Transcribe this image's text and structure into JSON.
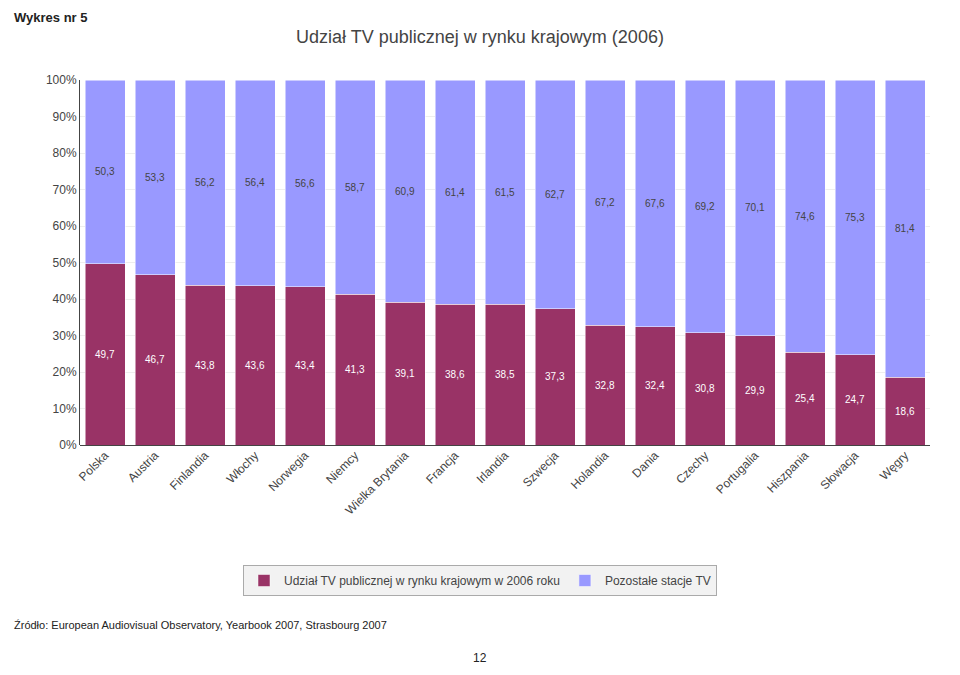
{
  "chart_data": {
    "type": "bar",
    "title": "Udział TV publicznej w rynku krajowym (2006)",
    "annotations": [
      "Wykres nr 5",
      "Źródło: European Audiovisual Observatory, Yearbook 2007, Strasbourg 2007",
      "12"
    ],
    "categories": [
      "Polska",
      "Austria",
      "Finlandia",
      "Włochy",
      "Norwegia",
      "Niemcy",
      "Wielka Brytania",
      "Francja",
      "Irlandia",
      "Szwecja",
      "Holandia",
      "Dania",
      "Czechy",
      "Portugalia",
      "Hiszpania",
      "Słowacja",
      "Węgry"
    ],
    "series": [
      {
        "name": "Udział TV publicznej w rynku krajowym w 2006 roku",
        "color": "#993366",
        "values": [
          49.7,
          46.7,
          43.8,
          43.6,
          43.4,
          41.3,
          39.1,
          38.6,
          38.5,
          37.3,
          32.8,
          32.4,
          30.8,
          29.9,
          25.4,
          24.7,
          18.6
        ],
        "value_labels": [
          "49,7",
          "46,7",
          "43,8",
          "43,6",
          "43,4",
          "41,3",
          "39,1",
          "38,6",
          "38,5",
          "37,3",
          "32,8",
          "32,4",
          "30,8",
          "29,9",
          "25,4",
          "24,7",
          "18,6"
        ]
      },
      {
        "name": "Pozostałe stacje TV",
        "color": "#9999ff",
        "values": [
          50.3,
          53.3,
          56.2,
          56.4,
          56.6,
          58.7,
          60.9,
          61.4,
          61.5,
          62.7,
          67.2,
          67.6,
          69.2,
          70.1,
          74.6,
          75.3,
          81.4
        ],
        "value_labels": [
          "50,3",
          "53,3",
          "56,2",
          "56,4",
          "56,6",
          "58,7",
          "60,9",
          "61,4",
          "61,5",
          "62,7",
          "67,2",
          "67,6",
          "69,2",
          "70,1",
          "74,6",
          "75,3",
          "81,4"
        ]
      }
    ],
    "stacked": true,
    "data_labels": true,
    "ylim": [
      0,
      100
    ],
    "yticks": [
      {
        "value": 0,
        "label": "0%"
      },
      {
        "value": 10,
        "label": "10%"
      },
      {
        "value": 20,
        "label": "20%"
      },
      {
        "value": 30,
        "label": "30%"
      },
      {
        "value": 40,
        "label": "40%"
      },
      {
        "value": 50,
        "label": "50%"
      },
      {
        "value": 60,
        "label": "60%"
      },
      {
        "value": 70,
        "label": "70%"
      },
      {
        "value": 80,
        "label": "80%"
      },
      {
        "value": 90,
        "label": "90%"
      },
      {
        "value": 100,
        "label": "100%"
      }
    ],
    "grid": true,
    "legend": "bottom"
  }
}
